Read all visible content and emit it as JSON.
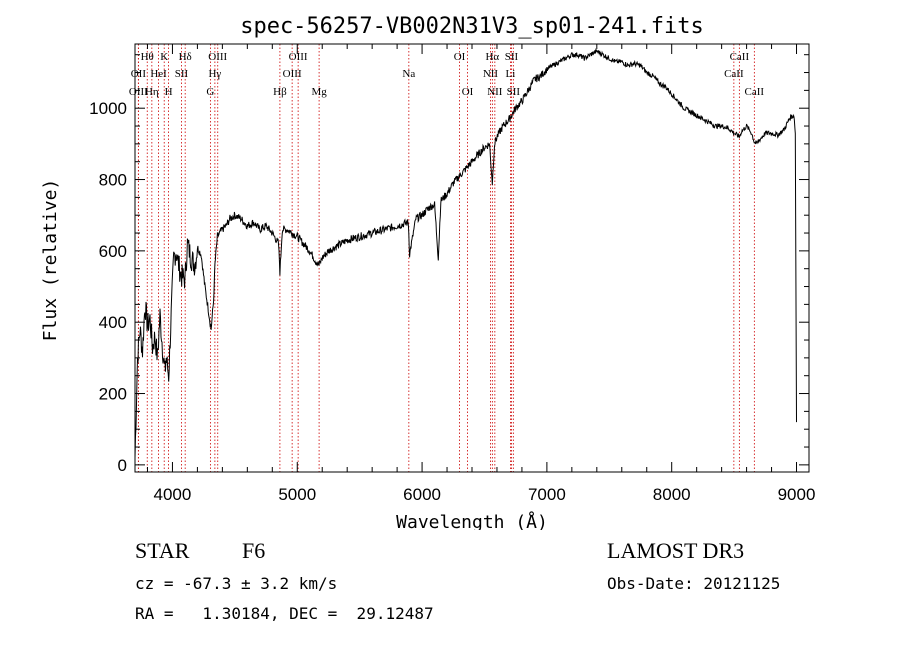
{
  "chart_data": {
    "type": "line",
    "title": "spec-56257-VB002N31V3_sp01-241.fits",
    "xlabel": "Wavelength (Å)",
    "ylabel": "Flux (relative)",
    "xlim": [
      3700,
      9100
    ],
    "ylim": [
      -20,
      1180
    ],
    "grid": false,
    "x_ticks": [
      4000,
      5000,
      6000,
      7000,
      8000,
      9000
    ],
    "x_tick_labels": [
      "4000",
      "5000",
      "6000",
      "7000",
      "8000",
      "9000"
    ],
    "y_ticks": [
      0,
      200,
      400,
      600,
      800,
      1000
    ],
    "y_tick_labels": [
      "0",
      "200",
      "400",
      "600",
      "800",
      "1000"
    ],
    "series": [
      {
        "name": "flux",
        "x": [
          3700,
          3720,
          3740,
          3760,
          3780,
          3800,
          3820,
          3840,
          3860,
          3880,
          3900,
          3920,
          3940,
          3950,
          3970,
          3990,
          4010,
          4030,
          4050,
          4070,
          4101,
          4120,
          4150,
          4180,
          4200,
          4230,
          4260,
          4290,
          4310,
          4330,
          4340,
          4360,
          4380,
          4400,
          4430,
          4460,
          4500,
          4550,
          4600,
          4650,
          4700,
          4750,
          4800,
          4850,
          4861,
          4880,
          4920,
          4960,
          5000,
          5050,
          5100,
          5150,
          5175,
          5200,
          5250,
          5300,
          5350,
          5400,
          5500,
          5600,
          5700,
          5800,
          5890,
          5900,
          5950,
          6000,
          6050,
          6100,
          6130,
          6150,
          6200,
          6250,
          6300,
          6350,
          6400,
          6450,
          6500,
          6540,
          6563,
          6580,
          6600,
          6650,
          6700,
          6750,
          6800,
          6850,
          6900,
          6950,
          7000,
          7050,
          7100,
          7150,
          7200,
          7250,
          7300,
          7350,
          7400,
          7450,
          7500,
          7550,
          7600,
          7650,
          7700,
          7750,
          7800,
          7850,
          7900,
          7950,
          8000,
          8050,
          8100,
          8150,
          8200,
          8250,
          8300,
          8350,
          8400,
          8450,
          8500,
          8542,
          8560,
          8600,
          8640,
          8662,
          8680,
          8700,
          8750,
          8800,
          8850,
          8900,
          8950,
          8980,
          8990,
          9000
        ],
        "y": [
          20,
          300,
          380,
          320,
          450,
          390,
          410,
          330,
          360,
          300,
          420,
          330,
          260,
          300,
          250,
          420,
          580,
          600,
          560,
          530,
          520,
          620,
          580,
          560,
          610,
          590,
          500,
          430,
          380,
          460,
          560,
          640,
          650,
          660,
          670,
          690,
          700,
          690,
          670,
          680,
          660,
          670,
          650,
          620,
          540,
          660,
          660,
          650,
          640,
          620,
          600,
          570,
          560,
          580,
          600,
          610,
          620,
          630,
          640,
          650,
          660,
          670,
          680,
          590,
          690,
          700,
          720,
          730,
          580,
          740,
          760,
          790,
          810,
          830,
          850,
          870,
          890,
          900,
          790,
          900,
          920,
          950,
          970,
          1000,
          1020,
          1050,
          1080,
          1090,
          1110,
          1120,
          1130,
          1140,
          1150,
          1150,
          1140,
          1150,
          1160,
          1150,
          1140,
          1130,
          1130,
          1120,
          1125,
          1120,
          1100,
          1090,
          1070,
          1060,
          1040,
          1020,
          1000,
          990,
          980,
          970,
          960,
          950,
          950,
          945,
          930,
          920,
          935,
          950,
          930,
          905,
          900,
          910,
          930,
          930,
          925,
          940,
          975,
          980,
          930,
          120
        ]
      }
    ],
    "spectral_lines": [
      {
        "label": "Hθ",
        "x": 3798,
        "row": 0
      },
      {
        "label": "OII",
        "x": 3727,
        "row": 1
      },
      {
        "label": "OIII",
        "x": 3727,
        "row": 2
      },
      {
        "label": "K",
        "x": 3934,
        "row": 0
      },
      {
        "label": "HeI",
        "x": 3889,
        "row": 1
      },
      {
        "label": "Hη",
        "x": 3835,
        "row": 2
      },
      {
        "label": "Hδ",
        "x": 4102,
        "row": 0
      },
      {
        "label": "SII",
        "x": 4072,
        "row": 1
      },
      {
        "label": "H",
        "x": 3969,
        "row": 2
      },
      {
        "label": "OIII",
        "x": 4363,
        "row": 0
      },
      {
        "label": "Hγ",
        "x": 4340,
        "row": 1
      },
      {
        "label": "G",
        "x": 4304,
        "row": 2
      },
      {
        "label": "OIII",
        "x": 5007,
        "row": 0
      },
      {
        "label": "OIII",
        "x": 4959,
        "row": 1
      },
      {
        "label": "Hβ",
        "x": 4861,
        "row": 2
      },
      {
        "label": "Mg",
        "x": 5175,
        "row": 2
      },
      {
        "label": "Na",
        "x": 5894,
        "row": 1
      },
      {
        "label": "OI",
        "x": 6300,
        "row": 0
      },
      {
        "label": "OI",
        "x": 6364,
        "row": 2
      },
      {
        "label": "Hα",
        "x": 6563,
        "row": 0
      },
      {
        "label": "NII",
        "x": 6548,
        "row": 1
      },
      {
        "label": "NII",
        "x": 6583,
        "row": 2
      },
      {
        "label": "SII",
        "x": 6716,
        "row": 0
      },
      {
        "label": "Li",
        "x": 6708,
        "row": 1
      },
      {
        "label": "SII",
        "x": 6731,
        "row": 2
      },
      {
        "label": "CaII",
        "x": 8542,
        "row": 0
      },
      {
        "label": "CaII",
        "x": 8498,
        "row": 1
      },
      {
        "label": "CaII",
        "x": 8662,
        "row": 2
      }
    ]
  },
  "info": {
    "object_type": "STAR",
    "subclass": "F6",
    "survey": "LAMOST DR3",
    "cz": "cz = -67.3 ± 3.2 km/s",
    "obs_date": "Obs-Date: 20121125",
    "coords": "RA =   1.30184, DEC =  29.12487"
  }
}
